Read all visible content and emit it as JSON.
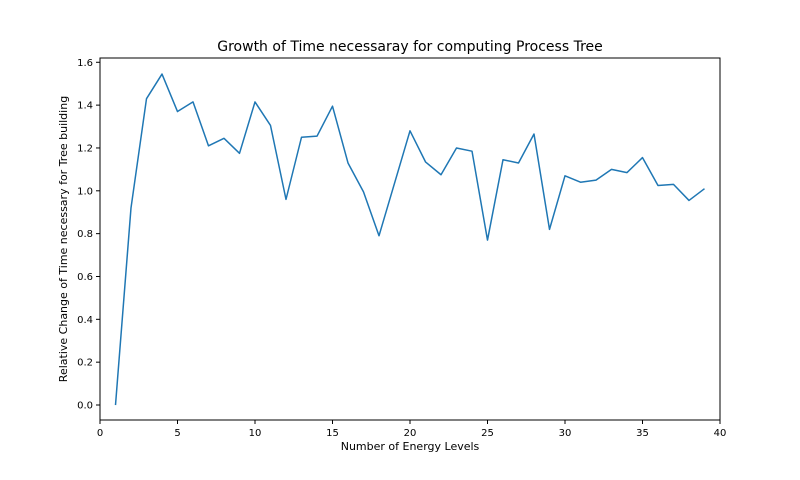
{
  "chart_data": {
    "type": "line",
    "title": "Growth of Time necessaray for computing Process Tree",
    "xlabel": "Number of Energy Levels",
    "ylabel": "Relative Change of Time necessary for Tree building",
    "xlim": [
      0,
      40
    ],
    "ylim": [
      -0.07,
      1.62
    ],
    "xticks": [
      0,
      5,
      10,
      15,
      20,
      25,
      30,
      35,
      40
    ],
    "yticks": [
      0.0,
      0.2,
      0.4,
      0.6,
      0.8,
      1.0,
      1.2,
      1.4,
      1.6
    ],
    "grid": false,
    "color": "#1f77b4",
    "x": [
      1,
      2,
      3,
      4,
      5,
      6,
      7,
      8,
      9,
      10,
      11,
      12,
      13,
      14,
      15,
      16,
      17,
      18,
      19,
      20,
      21,
      22,
      23,
      24,
      25,
      26,
      27,
      28,
      29,
      30,
      31,
      32,
      33,
      34,
      35,
      36,
      37,
      38,
      39
    ],
    "values": [
      0.0,
      0.92,
      1.43,
      1.545,
      1.37,
      1.415,
      1.21,
      1.245,
      1.175,
      1.415,
      1.305,
      0.96,
      1.25,
      1.255,
      1.395,
      1.13,
      0.995,
      0.79,
      1.035,
      1.28,
      1.135,
      1.075,
      1.2,
      1.185,
      0.77,
      1.145,
      1.13,
      1.265,
      0.82,
      1.07,
      1.04,
      1.05,
      1.1,
      1.085,
      1.155,
      1.025,
      1.03,
      0.955,
      1.01
    ]
  }
}
